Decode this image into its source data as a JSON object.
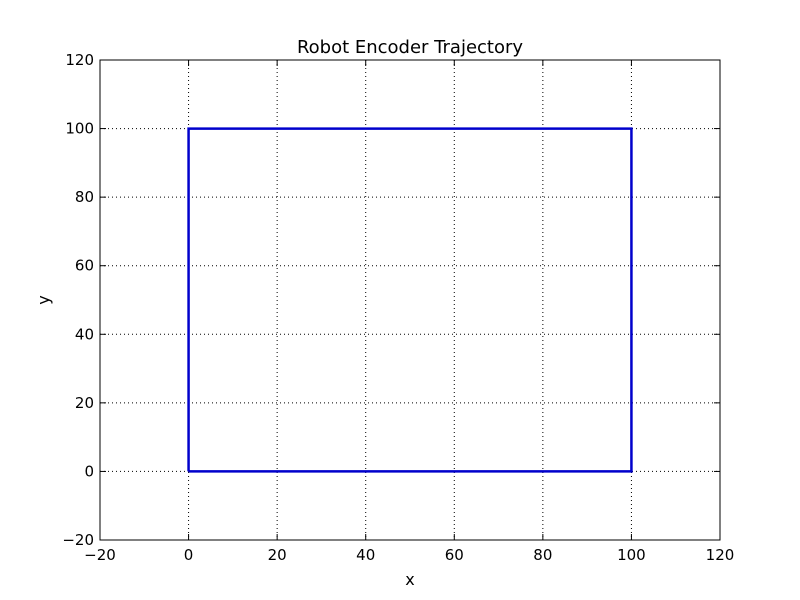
{
  "chart_data": {
    "type": "line",
    "title": "Robot Encoder Trajectory",
    "xlabel": "x",
    "ylabel": "y",
    "xlim": [
      -20,
      120
    ],
    "ylim": [
      -20,
      120
    ],
    "xticks": [
      -20,
      0,
      20,
      40,
      60,
      80,
      100,
      120
    ],
    "yticks": [
      -20,
      0,
      20,
      40,
      60,
      80,
      100,
      120
    ],
    "xtick_labels": [
      "−20",
      "0",
      "20",
      "40",
      "60",
      "80",
      "100",
      "120"
    ],
    "ytick_labels": [
      "−20",
      "0",
      "20",
      "40",
      "60",
      "80",
      "100",
      "120"
    ],
    "grid": true,
    "series": [
      {
        "color": "#0000cc",
        "x": [
          0,
          100,
          100,
          0,
          0
        ],
        "y": [
          0,
          0,
          100,
          100,
          0
        ]
      }
    ]
  }
}
